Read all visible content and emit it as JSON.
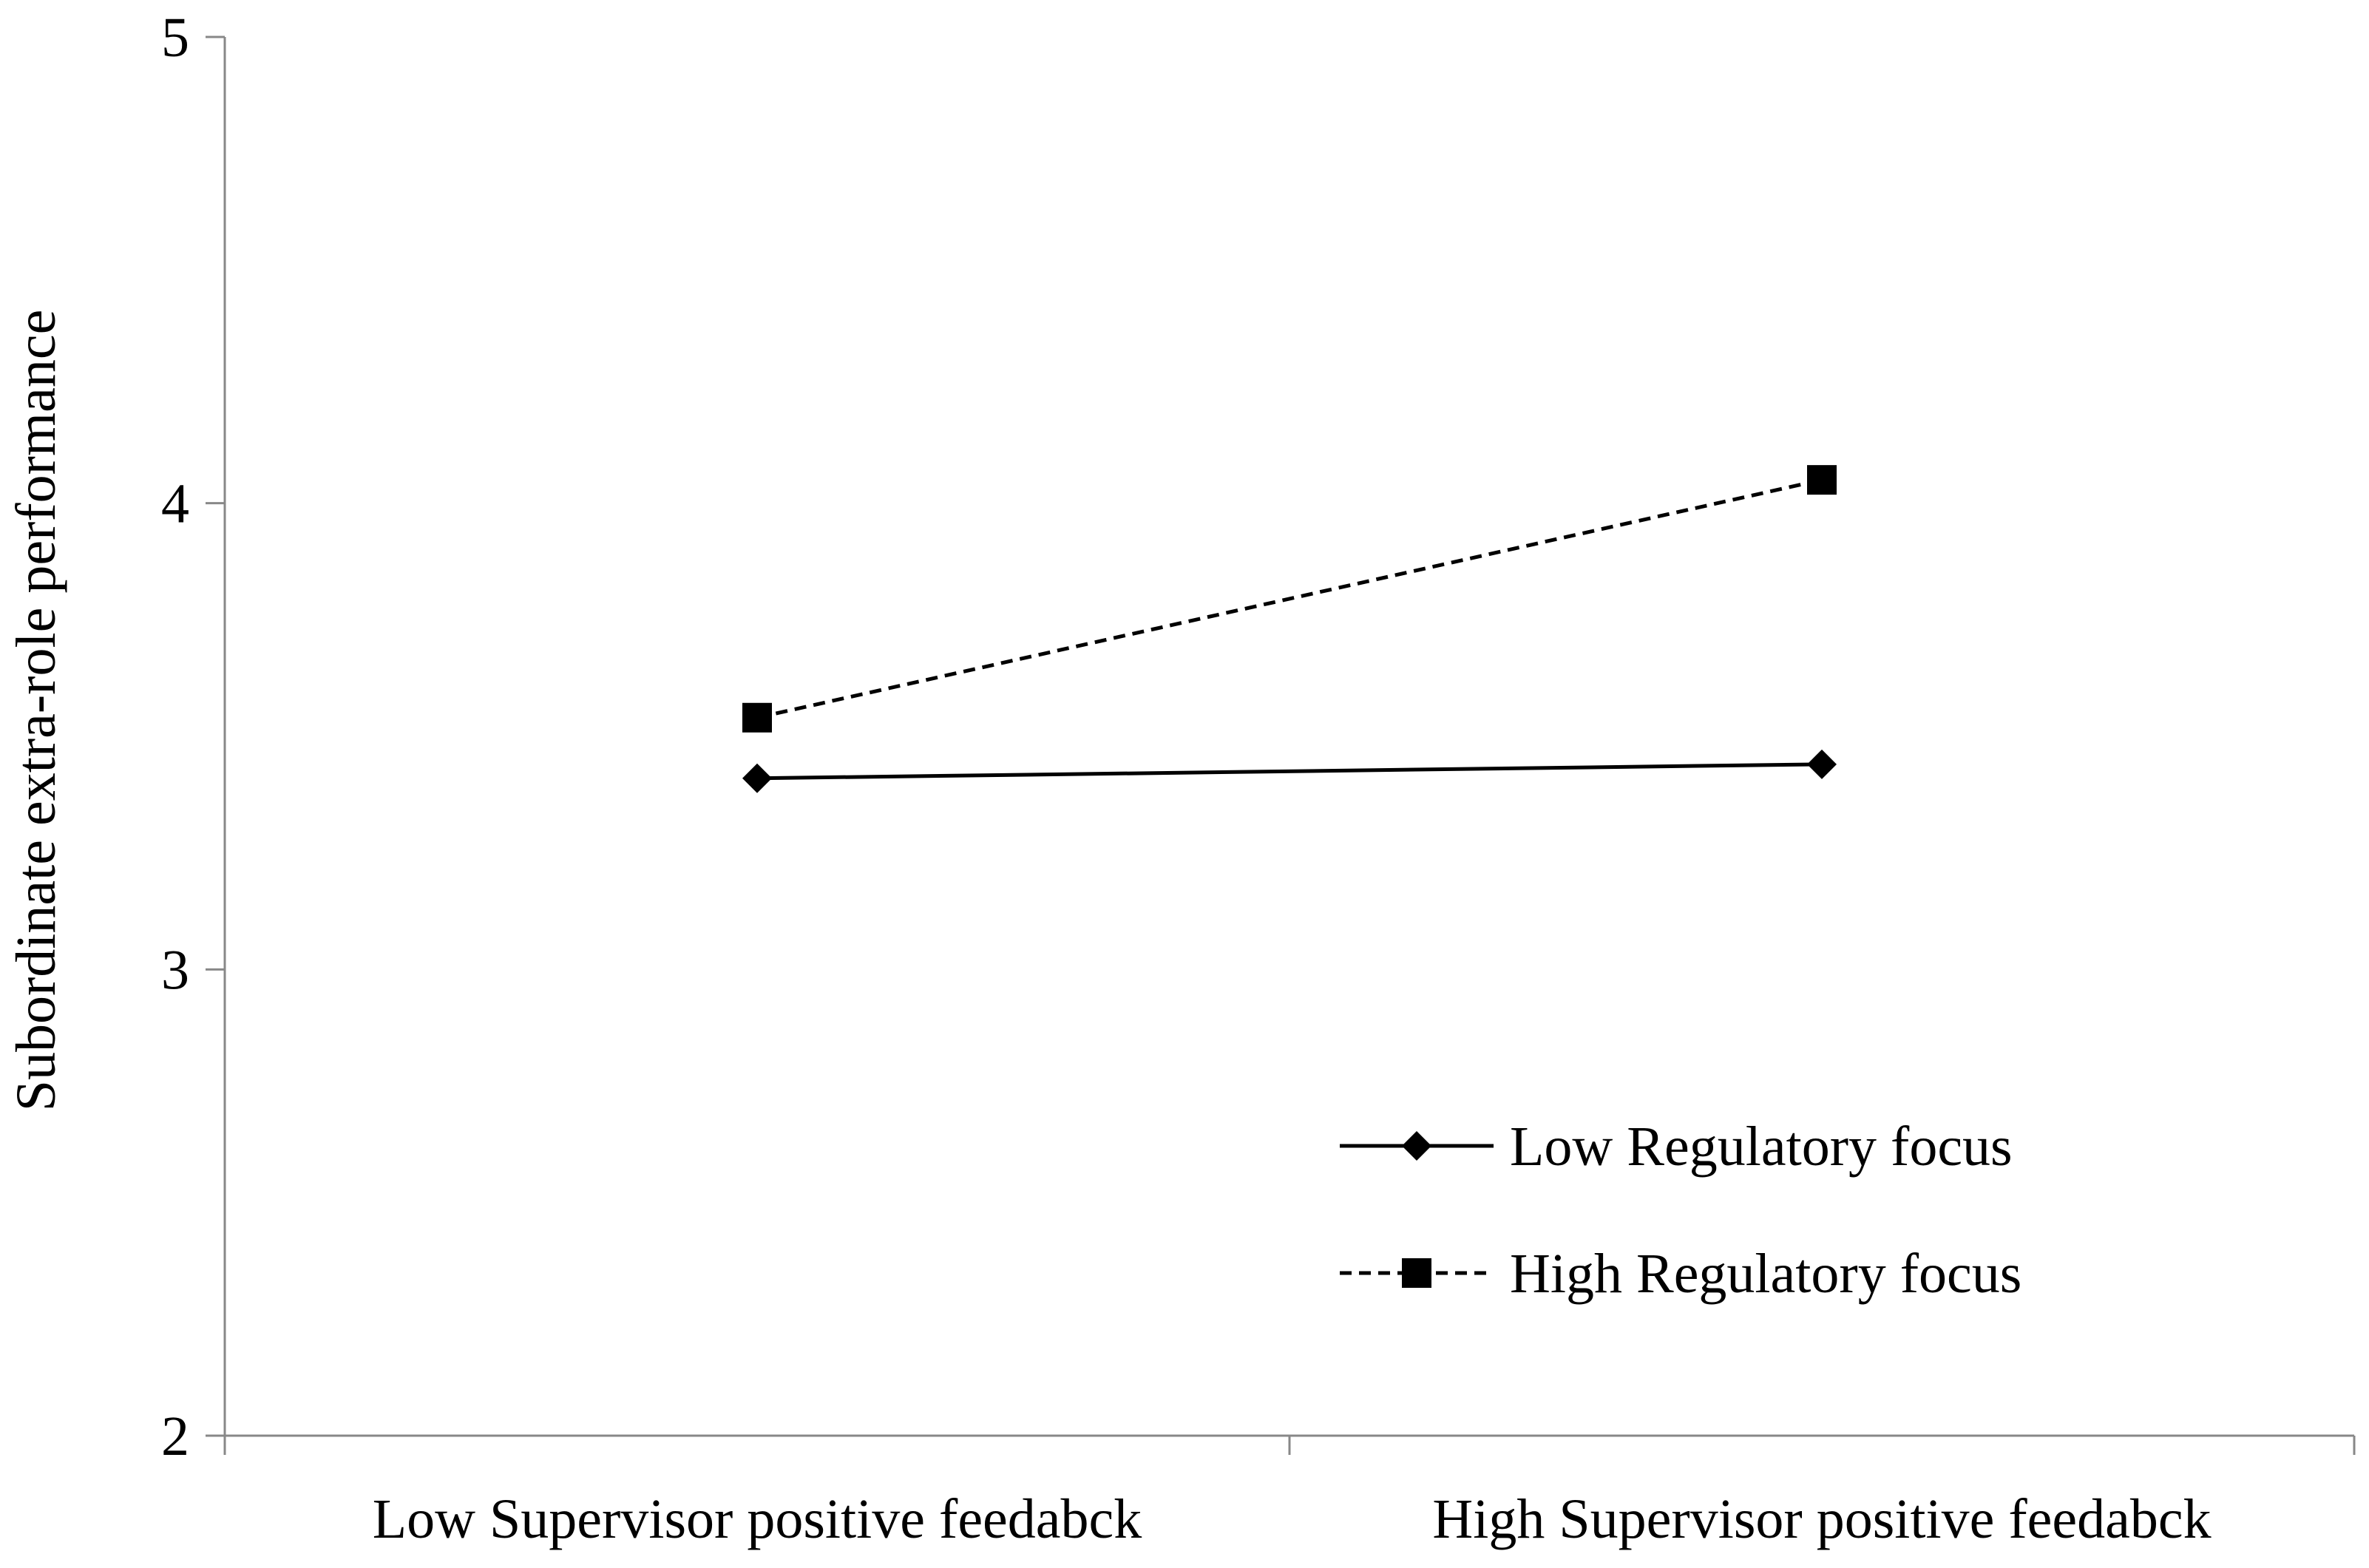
{
  "chart_data": {
    "type": "line",
    "title": "",
    "xlabel": "",
    "ylabel": "Subordinate extra-role performance",
    "categories": [
      "Low Supervisor positive feedabck",
      "High Supervisor positive feedabck"
    ],
    "ylim": [
      2,
      5
    ],
    "yticks": [
      2,
      3,
      4,
      5
    ],
    "grid": false,
    "legend_position": "lower-right",
    "series": [
      {
        "name": "Low Regulatory focus",
        "values": [
          3.41,
          3.44
        ],
        "marker": "diamond",
        "line_style": "solid",
        "color": "#000000"
      },
      {
        "name": "High Regulatory focus",
        "values": [
          3.54,
          4.05
        ],
        "marker": "square",
        "line_style": "dashed",
        "color": "#000000"
      }
    ]
  }
}
